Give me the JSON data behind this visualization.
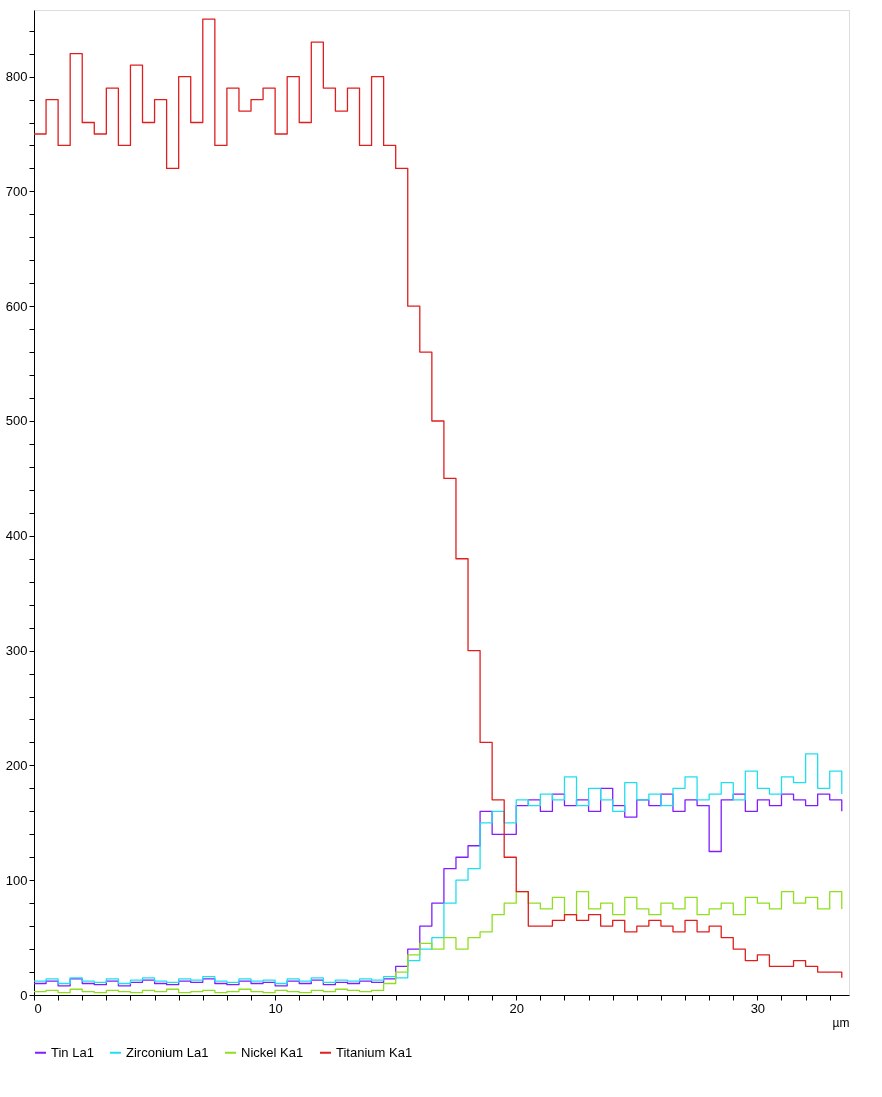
{
  "chart_data": {
    "type": "step",
    "xlabel": "µm",
    "legend": "bottom",
    "grid": false,
    "line_style": "solid",
    "marker": "none",
    "x": [
      0,
      0.5,
      1,
      1.5,
      2,
      2.5,
      3,
      3.5,
      4,
      4.5,
      5,
      5.5,
      6,
      6.5,
      7,
      7.5,
      8,
      8.5,
      9,
      9.5,
      10,
      10.5,
      11,
      11.5,
      12,
      12.5,
      13,
      13.5,
      14,
      14.5,
      15,
      15.5,
      16,
      16.5,
      17,
      17.5,
      18,
      18.5,
      19,
      19.5,
      20,
      20.5,
      21,
      21.5,
      22,
      22.5,
      23,
      23.5,
      24,
      24.5,
      25,
      25.5,
      26,
      26.5,
      27,
      27.5,
      28,
      28.5,
      29,
      29.5,
      30,
      30.5,
      31,
      31.5,
      32,
      32.5,
      33,
      33.5
    ],
    "xlim": [
      0,
      33.8
    ],
    "xticks": [
      0,
      {
        "value": 1,
        "label": null
      },
      {
        "value": 2,
        "label": null
      },
      {
        "value": 3,
        "label": null
      },
      {
        "value": 4,
        "label": null
      },
      {
        "value": 5,
        "label": null
      },
      {
        "value": 6,
        "label": null
      },
      {
        "value": 7,
        "label": null
      },
      {
        "value": 8,
        "label": null
      },
      {
        "value": 9,
        "label": null
      },
      10,
      {
        "value": 11,
        "label": null
      },
      {
        "value": 12,
        "label": null
      },
      {
        "value": 13,
        "label": null
      },
      {
        "value": 14,
        "label": null
      },
      {
        "value": 15,
        "label": null
      },
      {
        "value": 16,
        "label": null
      },
      {
        "value": 17,
        "label": null
      },
      {
        "value": 18,
        "label": null
      },
      {
        "value": 19,
        "label": null
      },
      20,
      {
        "value": 21,
        "label": null
      },
      {
        "value": 22,
        "label": null
      },
      {
        "value": 23,
        "label": null
      },
      {
        "value": 24,
        "label": null
      },
      {
        "value": 25,
        "label": null
      },
      {
        "value": 26,
        "label": null
      },
      {
        "value": 27,
        "label": null
      },
      {
        "value": 28,
        "label": null
      },
      {
        "value": 29,
        "label": null
      },
      30,
      {
        "value": 31,
        "label": null
      },
      {
        "value": 32,
        "label": null
      },
      {
        "value": 33,
        "label": null
      }
    ],
    "ylim": [
      0,
      858
    ],
    "yticks": [
      0,
      {
        "value": 20,
        "label": null
      },
      {
        "value": 40,
        "label": null
      },
      {
        "value": 60,
        "label": null
      },
      {
        "value": 80,
        "label": null
      },
      100,
      {
        "value": 120,
        "label": null
      },
      {
        "value": 140,
        "label": null
      },
      {
        "value": 160,
        "label": null
      },
      {
        "value": 180,
        "label": null
      },
      200,
      {
        "value": 220,
        "label": null
      },
      {
        "value": 240,
        "label": null
      },
      {
        "value": 260,
        "label": null
      },
      {
        "value": 280,
        "label": null
      },
      300,
      {
        "value": 320,
        "label": null
      },
      {
        "value": 340,
        "label": null
      },
      {
        "value": 360,
        "label": null
      },
      {
        "value": 380,
        "label": null
      },
      400,
      {
        "value": 420,
        "label": null
      },
      {
        "value": 440,
        "label": null
      },
      {
        "value": 460,
        "label": null
      },
      {
        "value": 480,
        "label": null
      },
      500,
      {
        "value": 520,
        "label": null
      },
      {
        "value": 540,
        "label": null
      },
      {
        "value": 560,
        "label": null
      },
      {
        "value": 580,
        "label": null
      },
      600,
      {
        "value": 620,
        "label": null
      },
      {
        "value": 640,
        "label": null
      },
      {
        "value": 660,
        "label": null
      },
      {
        "value": 680,
        "label": null
      },
      700,
      {
        "value": 720,
        "label": null
      },
      {
        "value": 740,
        "label": null
      },
      {
        "value": 760,
        "label": null
      },
      {
        "value": 780,
        "label": null
      },
      800,
      {
        "value": 820,
        "label": null
      },
      {
        "value": 840,
        "label": null
      }
    ],
    "series": [
      {
        "name": "Tin La1",
        "color": "#7f1fff",
        "values": [
          10,
          12,
          8,
          14,
          10,
          9,
          12,
          8,
          11,
          13,
          10,
          9,
          12,
          11,
          14,
          10,
          9,
          12,
          10,
          11,
          8,
          12,
          10,
          13,
          9,
          11,
          10,
          12,
          11,
          14,
          25,
          40,
          60,
          80,
          110,
          120,
          130,
          160,
          140,
          140,
          165,
          170,
          160,
          175,
          165,
          170,
          160,
          180,
          165,
          155,
          170,
          165,
          175,
          160,
          170,
          165,
          125,
          170,
          175,
          160,
          170,
          165,
          175,
          170,
          165,
          175,
          170,
          160
        ]
      },
      {
        "name": "Zirconium La1",
        "color": "#1fdfef",
        "values": [
          12,
          14,
          10,
          15,
          12,
          11,
          14,
          10,
          13,
          15,
          12,
          11,
          14,
          13,
          16,
          12,
          11,
          14,
          12,
          13,
          10,
          14,
          12,
          15,
          11,
          13,
          12,
          14,
          13,
          16,
          15,
          30,
          40,
          50,
          80,
          100,
          110,
          150,
          160,
          150,
          170,
          165,
          175,
          170,
          190,
          165,
          180,
          170,
          160,
          185,
          170,
          175,
          165,
          180,
          190,
          170,
          175,
          185,
          170,
          195,
          180,
          175,
          190,
          185,
          210,
          180,
          195,
          175
        ]
      },
      {
        "name": "Nickel Ka1",
        "color": "#8fdf1f",
        "values": [
          3,
          4,
          2,
          5,
          3,
          2,
          4,
          3,
          2,
          4,
          3,
          5,
          2,
          3,
          4,
          2,
          3,
          5,
          3,
          2,
          4,
          3,
          2,
          4,
          3,
          5,
          4,
          3,
          4,
          10,
          20,
          35,
          45,
          40,
          50,
          40,
          50,
          55,
          70,
          80,
          90,
          80,
          75,
          85,
          70,
          90,
          75,
          80,
          70,
          85,
          75,
          70,
          80,
          75,
          85,
          70,
          75,
          80,
          70,
          85,
          80,
          75,
          90,
          80,
          85,
          75,
          90,
          75
        ]
      },
      {
        "name": "Titanium Ka1",
        "color": "#df1f1f",
        "values": [
          750,
          780,
          740,
          820,
          760,
          750,
          790,
          740,
          810,
          760,
          780,
          720,
          800,
          760,
          850,
          740,
          790,
          770,
          780,
          790,
          750,
          800,
          760,
          830,
          790,
          770,
          790,
          740,
          800,
          740,
          720,
          600,
          560,
          500,
          450,
          380,
          300,
          220,
          170,
          120,
          90,
          60,
          60,
          65,
          70,
          65,
          70,
          60,
          65,
          55,
          60,
          65,
          60,
          55,
          65,
          55,
          60,
          50,
          40,
          30,
          35,
          25,
          25,
          30,
          25,
          20,
          20,
          15
        ]
      }
    ]
  }
}
